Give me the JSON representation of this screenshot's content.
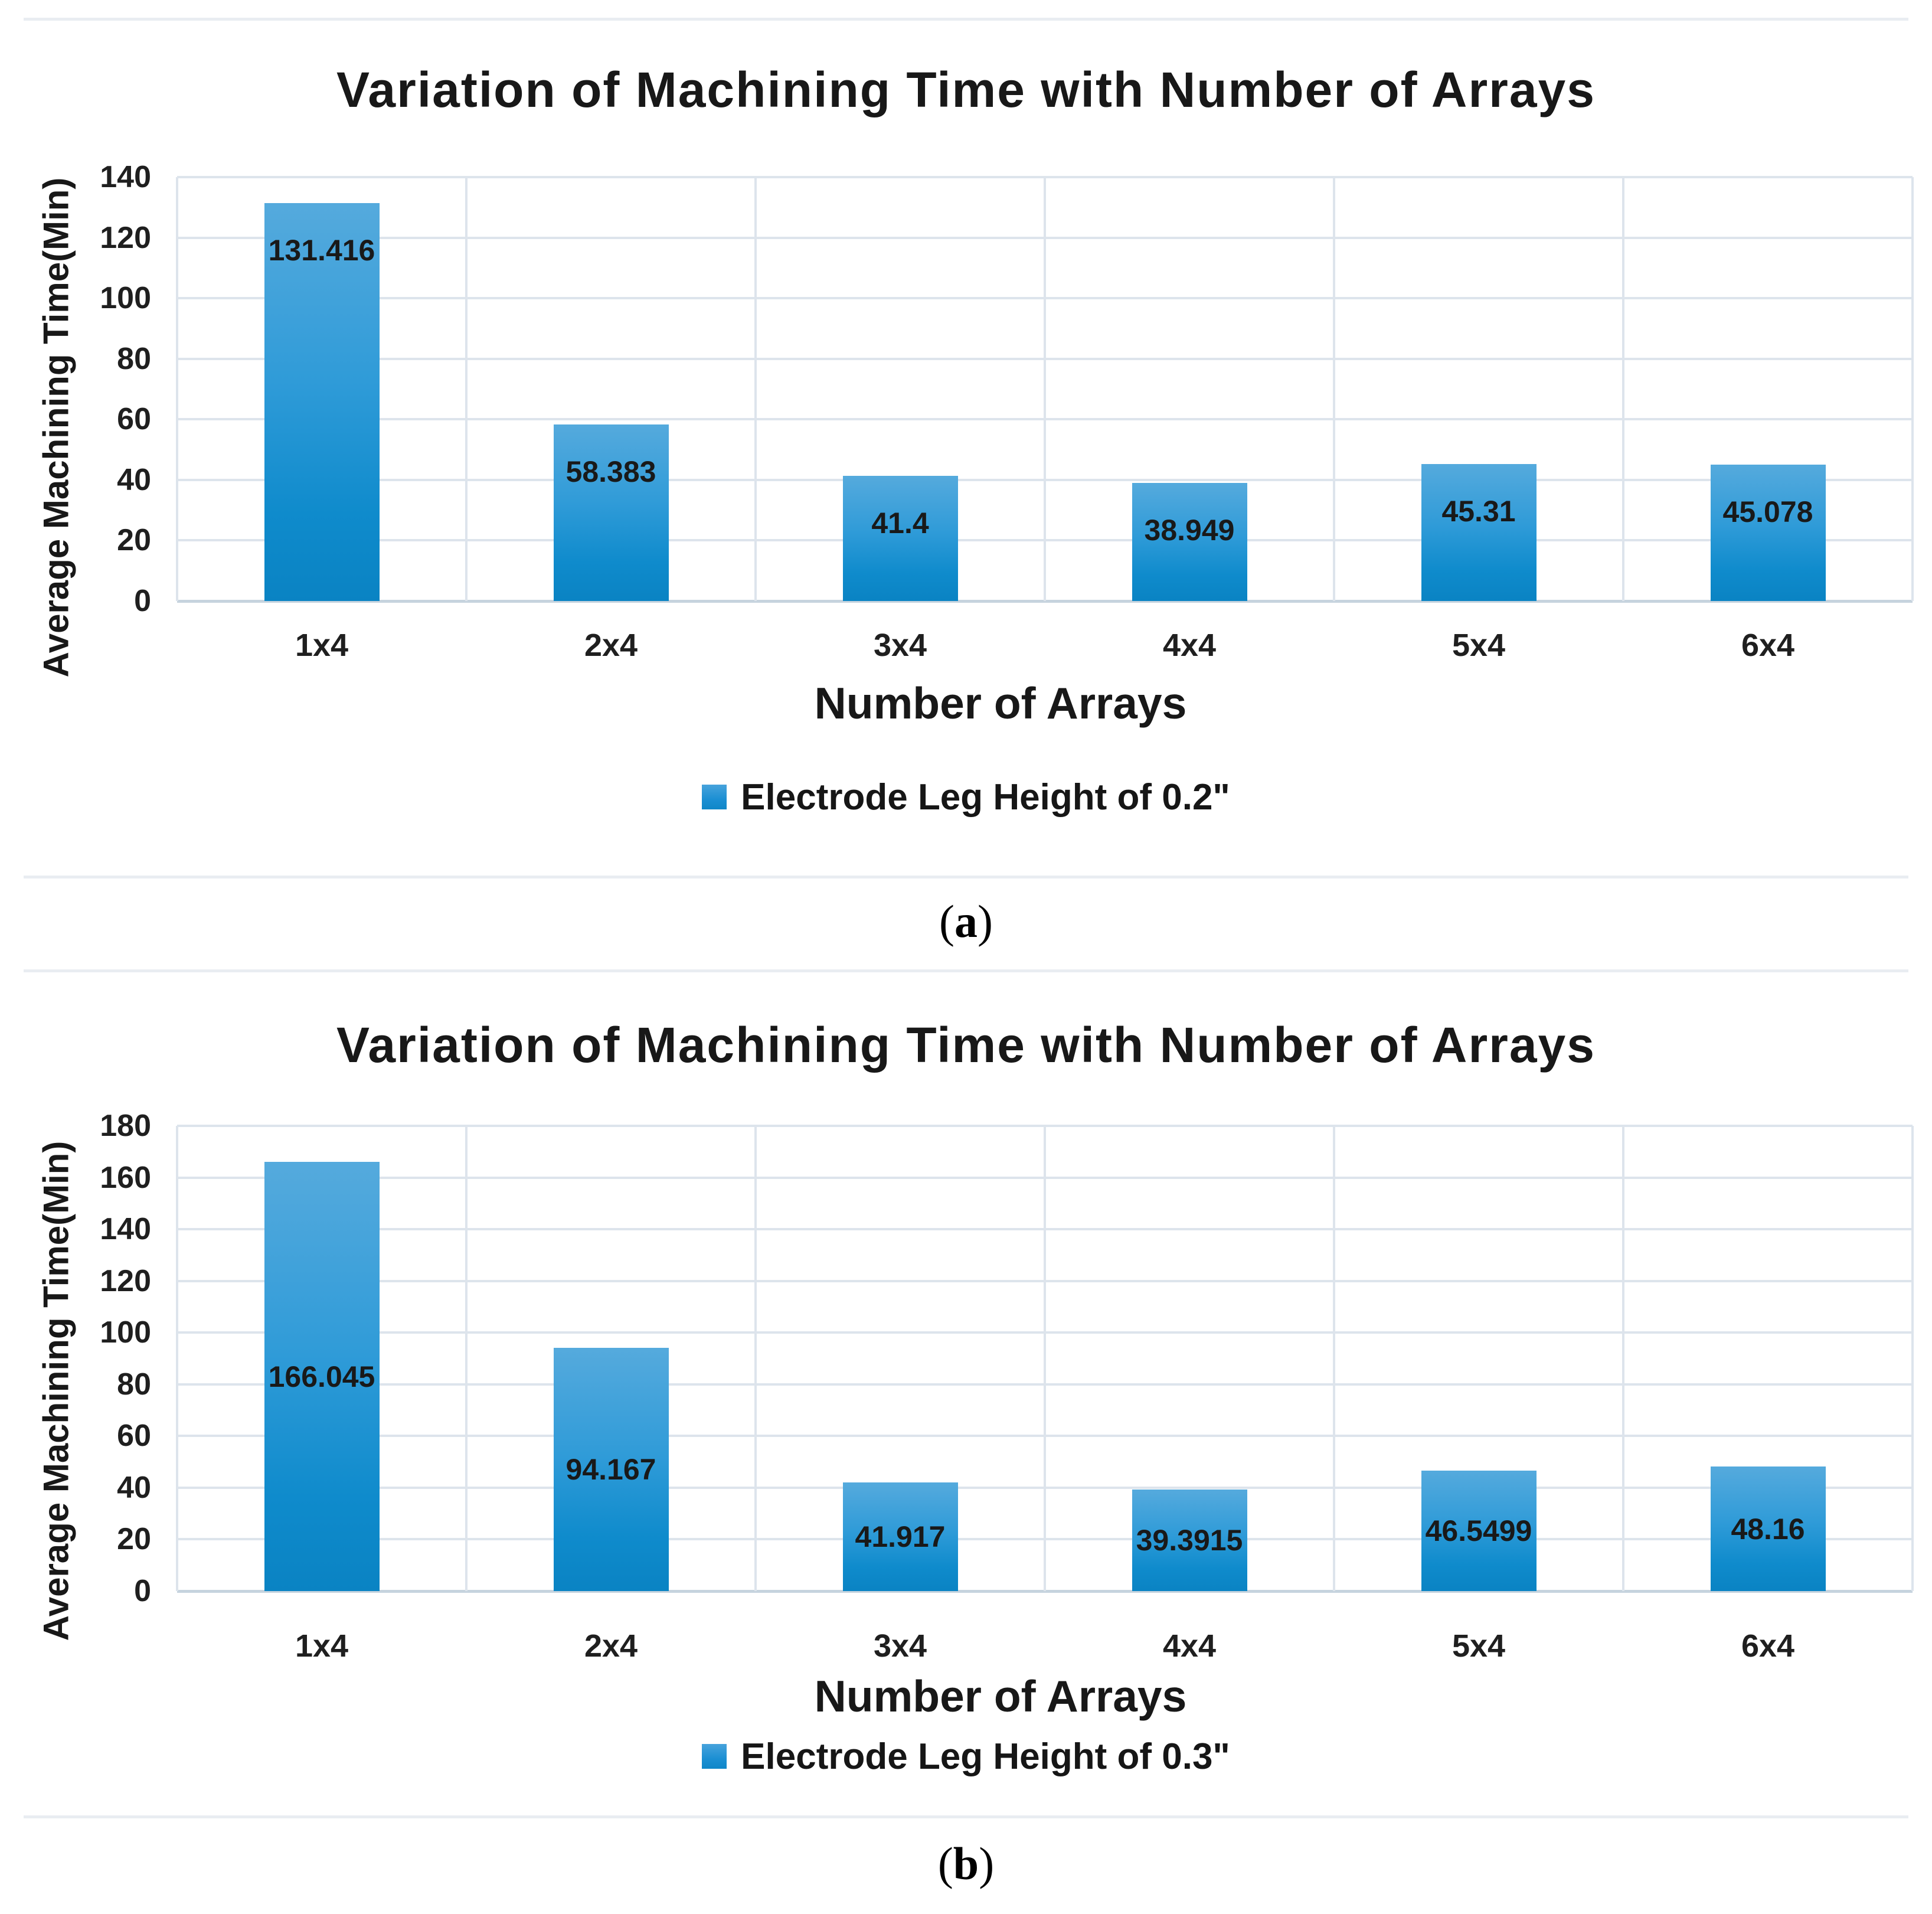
{
  "captions": [
    {
      "open": "(",
      "letter": "a",
      "close": ")"
    },
    {
      "open": "(",
      "letter": "b",
      "close": ")"
    }
  ],
  "chart_data": [
    {
      "type": "bar",
      "title": "Variation of Machining Time with Number of Arrays",
      "xlabel": "Number of Arrays",
      "ylabel": "Average Machining Time(Min)",
      "categories": [
        "1x4",
        "2x4",
        "3x4",
        "4x4",
        "5x4",
        "6x4"
      ],
      "values": [
        131.416,
        58.383,
        41.4,
        38.949,
        45.31,
        45.078
      ],
      "data_labels": [
        "131.416",
        "58.383",
        "41.4",
        "38.949",
        "45.31",
        "45.078"
      ],
      "ylim": [
        0,
        140
      ],
      "ytick_step": 20,
      "grid": true,
      "legend": [
        "Electrode Leg Height of 0.2\""
      ],
      "legend_position": "bottom",
      "data_label_position": "inside-end",
      "bar_color_top": "#55aadd",
      "bar_color_bottom": "#0a83c3",
      "gridline_color": "#dde4ec"
    },
    {
      "type": "bar",
      "title": "Variation of Machining Time with Number of Arrays",
      "xlabel": "Number of Arrays",
      "ylabel": "Average Machining Time(Min)",
      "categories": [
        "1x4",
        "2x4",
        "3x4",
        "4x4",
        "5x4",
        "6x4"
      ],
      "values": [
        166.045,
        94.167,
        41.917,
        39.3915,
        46.5499,
        48.16
      ],
      "data_labels": [
        "166.045",
        "94.167",
        "41.917",
        "39.3915",
        "46.5499",
        "48.16"
      ],
      "ylim": [
        0,
        180
      ],
      "ytick_step": 20,
      "grid": true,
      "legend": [
        "Electrode Leg Height of 0.3\""
      ],
      "legend_position": "bottom",
      "data_label_position": "center",
      "bar_color_top": "#55aadd",
      "bar_color_bottom": "#0a83c3",
      "gridline_color": "#dde4ec"
    }
  ]
}
